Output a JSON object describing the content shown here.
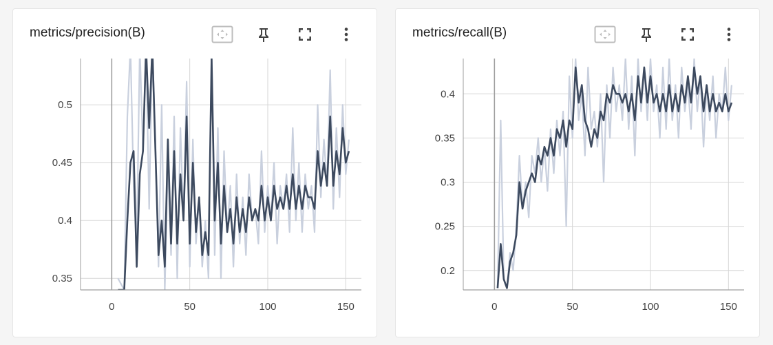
{
  "colors": {
    "smoothed_line": "#3d4a5f",
    "raw_line": "#c9d0de",
    "grid": "#d6d6d6",
    "axis": "#9e9e9e",
    "zero_line": "#9e9e9e"
  },
  "toolbar_icons": [
    "fit-domain-icon",
    "pin-icon",
    "fullscreen-icon",
    "more-vert-icon"
  ],
  "cards": [
    {
      "title": "metrics/precision(B)",
      "chart_data": {
        "type": "line",
        "title": "metrics/precision(B)",
        "xlim": [
          -20,
          160
        ],
        "ylim": [
          0.34,
          0.54
        ],
        "xticks": [
          0,
          50,
          100,
          150
        ],
        "yticks": [
          0.35,
          0.4,
          0.45,
          0.5
        ],
        "xtick_labels": [
          "0",
          "50",
          "100",
          "150"
        ],
        "ytick_labels": [
          "0.35",
          "0.4",
          "0.45",
          "0.5"
        ],
        "grid": true,
        "series": [
          {
            "role": "raw",
            "x": [
              4,
              8,
              10,
              12,
              14,
              16,
              18,
              20,
              22,
              24,
              26,
              28,
              30,
              32,
              34,
              36,
              38,
              40,
              42,
              44,
              46,
              48,
              50,
              52,
              54,
              56,
              58,
              60,
              62,
              64,
              66,
              68,
              70,
              72,
              74,
              76,
              78,
              80,
              82,
              84,
              86,
              88,
              90,
              92,
              94,
              96,
              98,
              100,
              102,
              104,
              106,
              108,
              110,
              112,
              114,
              116,
              118,
              120,
              122,
              124,
              126,
              128,
              130,
              132,
              134,
              136,
              138,
              140,
              142,
              144,
              146,
              148,
              150,
              152
            ],
            "y": [
              0.35,
              0.34,
              0.49,
              0.55,
              0.43,
              0.38,
              0.55,
              0.46,
              0.55,
              0.41,
              0.55,
              0.47,
              0.36,
              0.5,
              0.34,
              0.45,
              0.37,
              0.49,
              0.35,
              0.48,
              0.4,
              0.52,
              0.36,
              0.47,
              0.38,
              0.42,
              0.36,
              0.4,
              0.35,
              0.55,
              0.37,
              0.48,
              0.35,
              0.46,
              0.39,
              0.43,
              0.36,
              0.44,
              0.38,
              0.42,
              0.37,
              0.44,
              0.4,
              0.41,
              0.38,
              0.46,
              0.39,
              0.43,
              0.4,
              0.45,
              0.38,
              0.43,
              0.41,
              0.44,
              0.39,
              0.48,
              0.4,
              0.45,
              0.39,
              0.44,
              0.41,
              0.43,
              0.39,
              0.5,
              0.42,
              0.47,
              0.43,
              0.53,
              0.41,
              0.48,
              0.42,
              0.5,
              0.44,
              0.47
            ]
          },
          {
            "role": "smoothed",
            "x": [
              4,
              8,
              10,
              12,
              14,
              16,
              18,
              20,
              22,
              24,
              26,
              28,
              30,
              32,
              34,
              36,
              38,
              40,
              42,
              44,
              46,
              48,
              50,
              52,
              54,
              56,
              58,
              60,
              62,
              64,
              66,
              68,
              70,
              72,
              74,
              76,
              78,
              80,
              82,
              84,
              86,
              88,
              90,
              92,
              94,
              96,
              98,
              100,
              102,
              104,
              106,
              108,
              110,
              112,
              114,
              116,
              118,
              120,
              122,
              124,
              126,
              128,
              130,
              132,
              134,
              136,
              138,
              140,
              142,
              144,
              146,
              148,
              150,
              152
            ],
            "y": [
              0.34,
              0.34,
              0.4,
              0.45,
              0.46,
              0.36,
              0.44,
              0.46,
              0.55,
              0.48,
              0.55,
              0.46,
              0.37,
              0.4,
              0.36,
              0.47,
              0.38,
              0.46,
              0.38,
              0.44,
              0.4,
              0.49,
              0.38,
              0.45,
              0.39,
              0.42,
              0.37,
              0.39,
              0.37,
              0.54,
              0.4,
              0.45,
              0.38,
              0.43,
              0.39,
              0.41,
              0.38,
              0.42,
              0.39,
              0.41,
              0.39,
              0.42,
              0.4,
              0.41,
              0.4,
              0.43,
              0.4,
              0.42,
              0.4,
              0.43,
              0.41,
              0.42,
              0.41,
              0.43,
              0.41,
              0.44,
              0.41,
              0.43,
              0.41,
              0.43,
              0.42,
              0.42,
              0.41,
              0.46,
              0.43,
              0.45,
              0.43,
              0.49,
              0.43,
              0.46,
              0.44,
              0.48,
              0.45,
              0.46
            ]
          }
        ]
      }
    },
    {
      "title": "metrics/recall(B)",
      "chart_data": {
        "type": "line",
        "title": "metrics/recall(B)",
        "xlim": [
          -20,
          160
        ],
        "ylim": [
          0.178,
          0.44
        ],
        "xticks": [
          0,
          50,
          100,
          150
        ],
        "yticks": [
          0.2,
          0.25,
          0.3,
          0.35,
          0.4
        ],
        "xtick_labels": [
          "0",
          "50",
          "100",
          "150"
        ],
        "ytick_labels": [
          "0.2",
          "0.25",
          "0.3",
          "0.35",
          "0.4"
        ],
        "grid": true,
        "series": [
          {
            "role": "raw",
            "x": [
              2,
              4,
              6,
              8,
              10,
              12,
              14,
              16,
              18,
              20,
              22,
              24,
              26,
              28,
              30,
              32,
              34,
              36,
              38,
              40,
              42,
              44,
              46,
              48,
              50,
              52,
              54,
              56,
              58,
              60,
              62,
              64,
              66,
              68,
              70,
              72,
              74,
              76,
              78,
              80,
              82,
              84,
              86,
              88,
              90,
              92,
              94,
              96,
              98,
              100,
              102,
              104,
              106,
              108,
              110,
              112,
              114,
              116,
              118,
              120,
              122,
              124,
              126,
              128,
              130,
              132,
              134,
              136,
              138,
              140,
              142,
              144,
              146,
              148,
              150,
              152
            ],
            "y": [
              0.18,
              0.37,
              0.19,
              0.18,
              0.22,
              0.2,
              0.25,
              0.33,
              0.27,
              0.3,
              0.26,
              0.33,
              0.31,
              0.35,
              0.3,
              0.34,
              0.29,
              0.36,
              0.31,
              0.37,
              0.33,
              0.38,
              0.25,
              0.42,
              0.35,
              0.44,
              0.37,
              0.4,
              0.33,
              0.43,
              0.36,
              0.38,
              0.34,
              0.4,
              0.3,
              0.41,
              0.35,
              0.43,
              0.38,
              0.41,
              0.37,
              0.44,
              0.36,
              0.42,
              0.33,
              0.44,
              0.38,
              0.43,
              0.37,
              0.44,
              0.38,
              0.41,
              0.35,
              0.43,
              0.36,
              0.44,
              0.37,
              0.41,
              0.35,
              0.43,
              0.38,
              0.41,
              0.36,
              0.44,
              0.38,
              0.42,
              0.34,
              0.41,
              0.37,
              0.42,
              0.35,
              0.4,
              0.38,
              0.43,
              0.37,
              0.41
            ]
          },
          {
            "role": "smoothed",
            "x": [
              2,
              4,
              6,
              8,
              10,
              12,
              14,
              16,
              18,
              20,
              22,
              24,
              26,
              28,
              30,
              32,
              34,
              36,
              38,
              40,
              42,
              44,
              46,
              48,
              50,
              52,
              54,
              56,
              58,
              60,
              62,
              64,
              66,
              68,
              70,
              72,
              74,
              76,
              78,
              80,
              82,
              84,
              86,
              88,
              90,
              92,
              94,
              96,
              98,
              100,
              102,
              104,
              106,
              108,
              110,
              112,
              114,
              116,
              118,
              120,
              122,
              124,
              126,
              128,
              130,
              132,
              134,
              136,
              138,
              140,
              142,
              144,
              146,
              148,
              150,
              152
            ],
            "y": [
              0.18,
              0.23,
              0.19,
              0.18,
              0.21,
              0.22,
              0.24,
              0.3,
              0.27,
              0.29,
              0.3,
              0.31,
              0.3,
              0.33,
              0.32,
              0.34,
              0.33,
              0.35,
              0.33,
              0.36,
              0.35,
              0.37,
              0.34,
              0.37,
              0.36,
              0.43,
              0.39,
              0.41,
              0.37,
              0.36,
              0.34,
              0.36,
              0.35,
              0.38,
              0.37,
              0.4,
              0.39,
              0.41,
              0.4,
              0.4,
              0.39,
              0.4,
              0.38,
              0.4,
              0.37,
              0.42,
              0.39,
              0.43,
              0.39,
              0.42,
              0.39,
              0.4,
              0.38,
              0.4,
              0.38,
              0.41,
              0.38,
              0.4,
              0.38,
              0.41,
              0.39,
              0.42,
              0.39,
              0.43,
              0.4,
              0.42,
              0.38,
              0.41,
              0.38,
              0.4,
              0.38,
              0.39,
              0.38,
              0.4,
              0.38,
              0.39
            ]
          }
        ]
      }
    }
  ]
}
